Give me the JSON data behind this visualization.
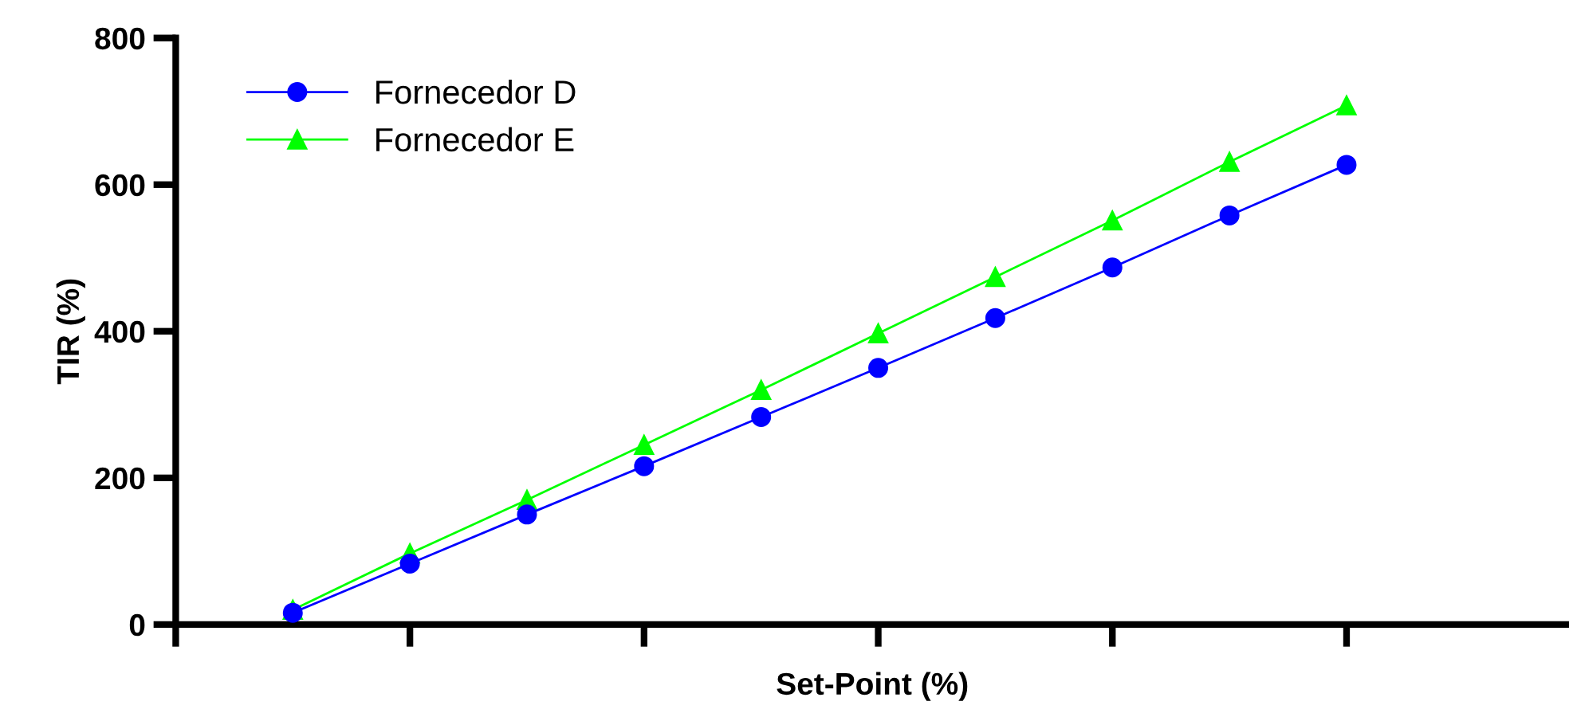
{
  "chart_data": {
    "type": "line",
    "xlabel": "Set-Point (%)",
    "ylabel": "TIR (%)",
    "categories": [
      null,
      null,
      null,
      null,
      null,
      null,
      null,
      null,
      null,
      null
    ],
    "ylim": [
      0,
      800
    ],
    "yticks": [
      0,
      200,
      400,
      600,
      800
    ],
    "grid": false,
    "legend": "top left",
    "line_style": "solid",
    "series": [
      {
        "name": "Fornecedor D",
        "color": "#0000ff",
        "marker": "circle",
        "values": [
          16,
          83,
          150,
          216,
          283,
          350,
          418,
          487,
          558,
          627
        ]
      },
      {
        "name": "Fornecedor E",
        "color": "#00ff00",
        "marker": "triangle",
        "values": [
          20,
          97,
          170,
          245,
          320,
          397,
          474,
          551,
          631,
          708
        ]
      }
    ]
  }
}
